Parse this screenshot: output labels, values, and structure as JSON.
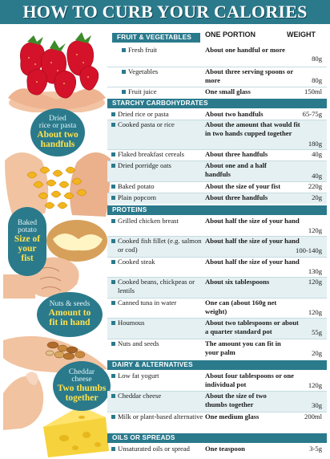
{
  "title": "HOW TO CURB YOUR CALORIES",
  "columns": {
    "portion": "ONE PORTION",
    "weight": "WEIGHT"
  },
  "callouts": {
    "rice": {
      "small": [
        "Dried",
        "rice or pasta"
      ],
      "big": [
        "About two",
        "handfuls"
      ]
    },
    "potato": {
      "small": [
        "Baked",
        "potato"
      ],
      "big": [
        "Size of",
        "your",
        "fist"
      ]
    },
    "nuts": {
      "small": [
        "Nuts & seeds"
      ],
      "big": [
        "Amount to",
        "fit in hand"
      ]
    },
    "cheese": {
      "small": [
        "Cheddar",
        "cheese"
      ],
      "big": [
        "Two thumbs",
        "together"
      ]
    }
  },
  "sections": [
    {
      "name": "FRUIT & VEGETABLES",
      "rows": [
        {
          "food": "Fresh fruit",
          "portion": "About one handful or more",
          "weight": "80g"
        },
        {
          "food": "Vegetables",
          "portion": "About three serving spoons or more",
          "weight": "80g"
        },
        {
          "food": "Fruit juice",
          "portion": "One small glass",
          "weight": "150ml"
        }
      ]
    },
    {
      "name": "STARCHY CARBOHYDRATES",
      "rows": [
        {
          "food": "Dried rice or pasta",
          "portion": "About two handfuls",
          "weight": "65-75g"
        },
        {
          "food": "Cooked pasta or rice",
          "portion": "About the amount that would fit in two hands cupped together",
          "weight": "180g"
        },
        {
          "food": "Flaked breakfast cereals",
          "portion": "About three handfuls",
          "weight": "40g"
        },
        {
          "food": "Dried porridge oats",
          "portion": "About one and a half handfuls",
          "weight": "40g"
        },
        {
          "food": "Baked potato",
          "portion": "About the size of your fist",
          "weight": "220g"
        },
        {
          "food": "Plain popcorn",
          "portion": "About three handfuls",
          "weight": "20g"
        }
      ]
    },
    {
      "name": "PROTEINS",
      "rows": [
        {
          "food": "Grilled chicken breast",
          "portion": "About half the size of your hand",
          "weight": "120g"
        },
        {
          "food": "Cooked fish fillet (e.g. salmon or cod)",
          "portion": "About half the size of your hand",
          "weight": "100-140g"
        },
        {
          "food": "Cooked steak",
          "portion": "About half the size of your hand",
          "weight": "130g"
        },
        {
          "food": "Cooked beans, chickpeas or lentils",
          "portion": "About six tablespoons",
          "weight": "120g"
        },
        {
          "food": "Canned tuna in water",
          "portion": "One can (about 160g net weight)",
          "weight": "120g"
        },
        {
          "food": "Houmous",
          "portion": "About two tablespoons or about a quarter standard pot",
          "weight": "55g"
        },
        {
          "food": "Nuts and seeds",
          "portion": "The amount you can fit in your palm",
          "weight": "20g"
        }
      ]
    },
    {
      "name": "DAIRY & ALTERNATIVES",
      "rows": [
        {
          "food": "Low fat yogurt",
          "portion": "About four tablespoons or one individual pot",
          "weight": "120g"
        },
        {
          "food": "Cheddar cheese",
          "portion": "About the size of two thumbs together",
          "weight": "30g"
        },
        {
          "food": "Milk or plant-based alternative",
          "portion": "One medium glass",
          "weight": "200ml"
        }
      ]
    },
    {
      "name": "OILS OR SPREADS",
      "rows": [
        {
          "food": "Unsaturated oils or spread",
          "portion": "One teaspoon",
          "weight": "3-5g"
        }
      ]
    }
  ]
}
